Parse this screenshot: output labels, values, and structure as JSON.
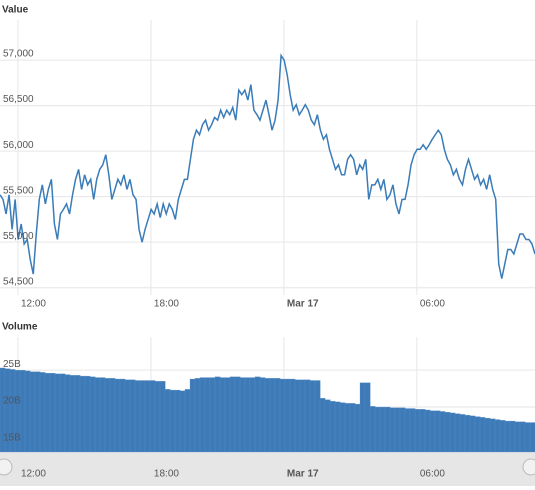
{
  "chart_data": [
    {
      "type": "line",
      "title": "Value",
      "color": "#3a7cb8",
      "ylim": [
        54420,
        57440
      ],
      "yticks": [
        {
          "value": 54500,
          "label": "54,500"
        },
        {
          "value": 55000,
          "label": "55,000"
        },
        {
          "value": 55500,
          "label": "55,500"
        },
        {
          "value": 56000,
          "label": "56,000"
        },
        {
          "value": 56500,
          "label": "56,500"
        },
        {
          "value": 57000,
          "label": "57,000"
        }
      ],
      "xlim": [
        11.19,
        35.33
      ],
      "xticks": [
        {
          "value": 12,
          "label": "12:00"
        },
        {
          "value": 18,
          "label": "18:00"
        },
        {
          "value": 24,
          "label": "Mar 17"
        },
        {
          "value": 30,
          "label": "06:00"
        }
      ],
      "grid": true,
      "values": [
        55520,
        55470,
        55310,
        55520,
        55140,
        55470,
        55030,
        55200,
        54980,
        55030,
        54810,
        54650,
        55090,
        55470,
        55630,
        55420,
        55580,
        55690,
        55200,
        55030,
        55310,
        55360,
        55420,
        55310,
        55520,
        55690,
        55800,
        55580,
        55740,
        55630,
        55690,
        55470,
        55690,
        55800,
        55850,
        55960,
        55740,
        55470,
        55580,
        55690,
        55630,
        55740,
        55580,
        55690,
        55520,
        55470,
        55140,
        55000,
        55140,
        55250,
        55360,
        55310,
        55420,
        55270,
        55420,
        55310,
        55420,
        55360,
        55250,
        55470,
        55580,
        55690,
        55690,
        55910,
        56130,
        56230,
        56180,
        56290,
        56340,
        56230,
        56290,
        56370,
        56340,
        56450,
        56370,
        56450,
        56400,
        56480,
        56340,
        56670,
        56620,
        56670,
        56560,
        56730,
        56450,
        56400,
        56340,
        56450,
        56560,
        56400,
        56230,
        56340,
        56560,
        57050,
        57000,
        56840,
        56620,
        56450,
        56510,
        56400,
        56450,
        56510,
        56450,
        56340,
        56290,
        56400,
        56230,
        56130,
        56180,
        56020,
        55910,
        55800,
        55850,
        55740,
        55740,
        55910,
        55960,
        55910,
        55740,
        55850,
        55800,
        55910,
        55470,
        55630,
        55630,
        55690,
        55580,
        55690,
        55470,
        55520,
        55630,
        55420,
        55310,
        55470,
        55470,
        55630,
        55850,
        55960,
        56020,
        56020,
        56070,
        56020,
        56070,
        56130,
        56180,
        56230,
        56180,
        56020,
        55910,
        55850,
        55740,
        55800,
        55690,
        55630,
        55800,
        55910,
        55800,
        55690,
        55740,
        55630,
        55690,
        55580,
        55740,
        55580,
        55470,
        54760,
        54600,
        54760,
        54920,
        54920,
        54870,
        54980,
        55090,
        55090,
        55030,
        55030,
        54980,
        54870
      ]
    },
    {
      "type": "bar",
      "title": "Volume",
      "color": "#3d7ab8",
      "ylim": [
        13.9,
        29.5
      ],
      "yticks": [
        {
          "value": 15,
          "label": "15B"
        },
        {
          "value": 20,
          "label": "20B"
        },
        {
          "value": 25,
          "label": "25B"
        }
      ],
      "xlim": [
        11.19,
        35.33
      ],
      "xticks": [
        {
          "value": 12,
          "label": "12:00"
        },
        {
          "value": 18,
          "label": "18:00"
        },
        {
          "value": 24,
          "label": "Mar 17"
        },
        {
          "value": 30,
          "label": "06:00"
        }
      ],
      "grid": true,
      "values": [
        25.3,
        25.2,
        25.1,
        25.0,
        25.0,
        24.9,
        24.8,
        24.8,
        24.7,
        24.6,
        24.6,
        24.5,
        24.5,
        24.4,
        24.3,
        24.3,
        24.2,
        24.2,
        24.1,
        24.0,
        24.0,
        23.9,
        23.9,
        23.8,
        23.8,
        23.7,
        23.7,
        23.6,
        23.6,
        23.6,
        23.6,
        23.5,
        23.5,
        22.4,
        22.3,
        22.3,
        22.2,
        22.4,
        23.8,
        23.9,
        24.0,
        24.0,
        24.0,
        24.1,
        24.0,
        24.0,
        24.1,
        24.1,
        24.0,
        24.0,
        24.0,
        24.1,
        24.0,
        23.9,
        23.9,
        23.9,
        23.8,
        23.8,
        23.8,
        23.7,
        23.7,
        23.7,
        23.6,
        23.6,
        21.2,
        21.0,
        20.8,
        20.7,
        20.6,
        20.5,
        20.5,
        20.4,
        23.3,
        23.3,
        20.1,
        20.0,
        20.0,
        20.0,
        19.9,
        19.9,
        19.9,
        19.8,
        19.8,
        19.7,
        19.7,
        19.6,
        19.5,
        19.5,
        19.4,
        19.3,
        19.2,
        19.1,
        19.0,
        18.9,
        18.8,
        18.7,
        18.6,
        18.5,
        18.4,
        18.3,
        18.2,
        18.1,
        18.1,
        18.0,
        18.0,
        17.9,
        17.9
      ]
    }
  ]
}
